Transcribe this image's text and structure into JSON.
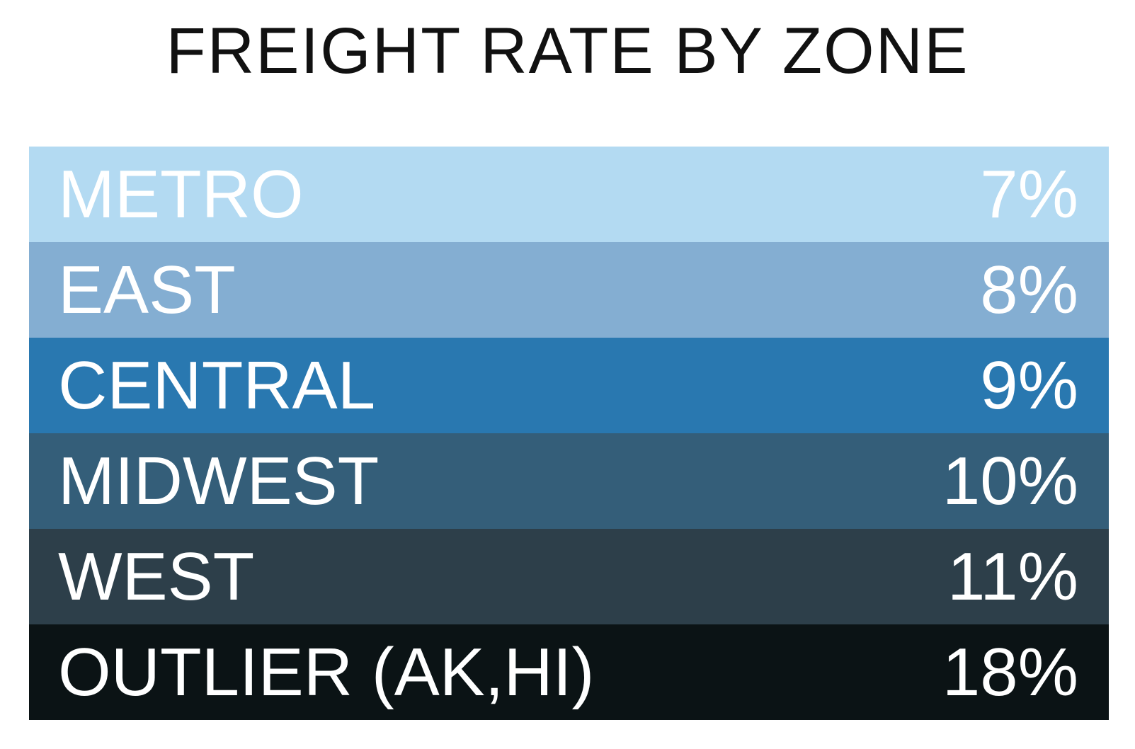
{
  "header": {
    "title": "FREIGHT RATE BY ZONE"
  },
  "table": {
    "rows": [
      [
        "METRO",
        "7%"
      ],
      [
        "EAST",
        "8%"
      ],
      [
        "CENTRAL",
        "9%"
      ],
      [
        "MIDWEST",
        "10%"
      ],
      [
        "WEST",
        "11%"
      ],
      [
        "OUTLIER (AK,HI)",
        "18%"
      ]
    ]
  }
}
